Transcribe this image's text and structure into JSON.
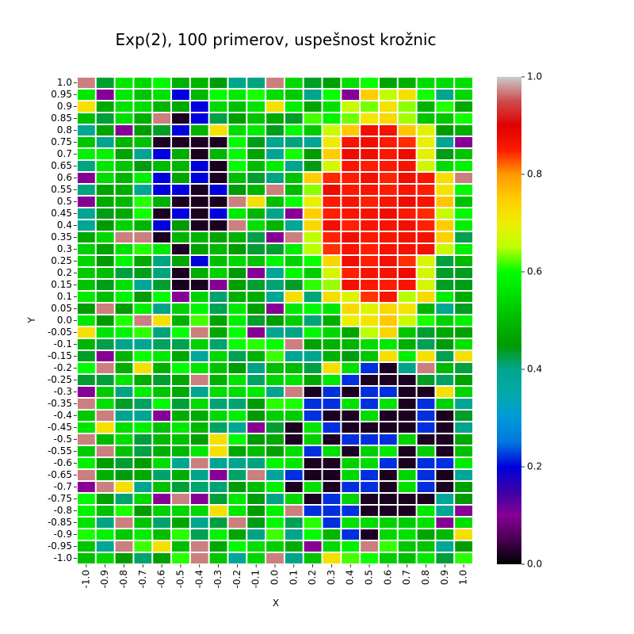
{
  "chart_data": {
    "type": "heatmap",
    "title": "Exp(2), 100 primerov, uspešnost krožnic",
    "xlabel": "X",
    "ylabel": "Y",
    "x_ticks": [
      "-1.0",
      "-0.9",
      "-0.8",
      "-0.7",
      "-0.6",
      "-0.5",
      "-0.4",
      "-0.3",
      "-0.2",
      "-0.1",
      "0.0",
      "0.1",
      "0.2",
      "0.3",
      "0.4",
      "0.5",
      "0.6",
      "0.7",
      "0.8",
      "0.9",
      "1.0"
    ],
    "y_ticks": [
      "1.0",
      "0.95",
      "0.9",
      "0.85",
      "0.8",
      "0.75",
      "0.7",
      "0.65",
      "0.6",
      "0.55",
      "0.5",
      "0.45",
      "0.4",
      "0.35",
      "0.3",
      "0.25",
      "0.2",
      "0.15",
      "0.1",
      "0.05",
      "0.0",
      "-0.05",
      "-0.1",
      "-0.15",
      "-0.2",
      "-0.25",
      "-0.3",
      "-0.35",
      "-0.4",
      "-0.45",
      "-0.5",
      "-0.55",
      "-0.6",
      "-0.65",
      "-0.7",
      "-0.75",
      "-0.8",
      "-0.85",
      "-0.9",
      "-0.95",
      "-1.0"
    ],
    "x_range": [
      -1.0,
      1.0
    ],
    "y_range": [
      -1.0,
      1.0
    ],
    "cell_step": 0.05,
    "value_range": [
      0.0,
      1.0
    ],
    "colorbar_ticks": [
      "0.0",
      "0.2",
      "0.4",
      "0.6",
      "0.8",
      "1.0"
    ],
    "colormap": "nipy_spectral",
    "grid": false,
    "note_on_values": "Each cell is an estimated success rate in [0,1]; approximated from colors. A high-success region (~0.8–0.85) spans roughly X 0.3–0.8, Y 0.1–0.8; low-success black/blue patches lie near X -0.6–-0.3, Y 0.1–0.95 and near X 0.1–0.9, Y -0.9–-0.2; background ~0.4–0.6."
  }
}
